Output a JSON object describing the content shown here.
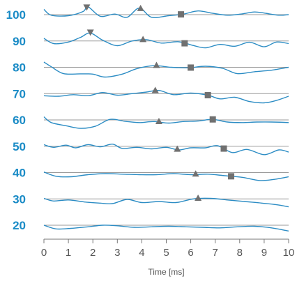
{
  "chart_data": {
    "type": "line",
    "xlabel": "Time [ms]",
    "xlim": [
      0,
      10
    ],
    "x_ticks": [
      0,
      1,
      2,
      3,
      4,
      5,
      6,
      7,
      8,
      9,
      10
    ],
    "y_ticks": [
      100,
      90,
      80,
      70,
      60,
      50,
      40,
      30,
      20
    ],
    "colors": {
      "trace": "#2b8cc4",
      "baseline": "#9a9a9a",
      "marker": "#707070",
      "ytick": "#1a8bc6"
    },
    "traces": [
      {
        "level": 100,
        "x": [
          0,
          0.3,
          1.0,
          1.6,
          1.8,
          2.3,
          2.9,
          3.4,
          3.9,
          4.4,
          5.1,
          5.7,
          6.3,
          6.9,
          7.5,
          8.1,
          8.6,
          9.0,
          9.6,
          10
        ],
        "y": [
          102,
          99.8,
          99.6,
          101.2,
          103,
          99.4,
          100.2,
          99.0,
          102.5,
          99.0,
          99.6,
          100.2,
          101.4,
          100.5,
          99.8,
          100.3,
          101.0,
          100.6,
          99.8,
          100.0
        ],
        "markers": [
          {
            "x": 1.75,
            "shape": "triangle-down"
          },
          {
            "x": 3.95,
            "shape": "triangle-up"
          },
          {
            "x": 5.6,
            "shape": "square"
          }
        ]
      },
      {
        "level": 90,
        "x": [
          0,
          0.4,
          1.0,
          1.5,
          1.9,
          2.4,
          3.0,
          3.6,
          4.2,
          4.8,
          5.5,
          6.1,
          6.6,
          7.2,
          7.8,
          8.4,
          9.0,
          9.5,
          10
        ],
        "y": [
          91,
          89.0,
          89.6,
          91.4,
          93,
          90.3,
          88.2,
          90.0,
          90.5,
          89.2,
          89.7,
          88.3,
          87.4,
          88.7,
          88.0,
          89.5,
          87.8,
          89.6,
          89.0
        ],
        "markers": [
          {
            "x": 1.9,
            "shape": "triangle-down"
          },
          {
            "x": 4.05,
            "shape": "triangle-up"
          },
          {
            "x": 5.75,
            "shape": "square"
          }
        ]
      },
      {
        "level": 80,
        "x": [
          0,
          0.3,
          0.8,
          1.5,
          2.0,
          2.5,
          3.2,
          3.8,
          4.5,
          5.2,
          5.9,
          6.6,
          7.3,
          7.9,
          8.6,
          9.3,
          10
        ],
        "y": [
          82,
          80.2,
          77.6,
          77.5,
          77.4,
          76.3,
          77.4,
          79.5,
          80.6,
          80.0,
          79.8,
          80.4,
          79.6,
          77.6,
          78.3,
          78.9,
          80.0
        ],
        "markers": [
          {
            "x": 4.6,
            "shape": "triangle-up"
          },
          {
            "x": 6.0,
            "shape": "square"
          }
        ]
      },
      {
        "level": 70,
        "x": [
          0,
          0.6,
          1.2,
          1.8,
          2.4,
          3.0,
          3.6,
          4.2,
          4.7,
          5.3,
          6.0,
          6.7,
          7.2,
          7.8,
          8.4,
          9.0,
          9.5,
          10
        ],
        "y": [
          69.2,
          69.0,
          69.6,
          69.2,
          70.4,
          69.4,
          70.0,
          70.6,
          71.2,
          69.6,
          70.2,
          69.4,
          68.0,
          68.6,
          67.0,
          66.5,
          67.4,
          69.0
        ],
        "markers": [
          {
            "x": 4.55,
            "shape": "triangle-up"
          },
          {
            "x": 6.7,
            "shape": "square"
          }
        ]
      },
      {
        "level": 60,
        "x": [
          0,
          0.3,
          0.9,
          1.5,
          2.1,
          2.7,
          3.3,
          3.9,
          4.5,
          5.1,
          5.7,
          6.3,
          6.9,
          7.5,
          8.1,
          8.7,
          9.3,
          10
        ],
        "y": [
          61.2,
          59.0,
          57.8,
          56.8,
          57.6,
          60.2,
          59.5,
          59.0,
          59.4,
          58.8,
          59.4,
          59.6,
          60.2,
          59.2,
          59.0,
          59.2,
          59.2,
          59.0
        ],
        "markers": [
          {
            "x": 4.7,
            "shape": "triangle-up"
          },
          {
            "x": 6.9,
            "shape": "square"
          }
        ]
      },
      {
        "level": 50,
        "x": [
          0,
          0.4,
          0.9,
          1.3,
          1.8,
          2.3,
          2.8,
          3.2,
          3.8,
          4.4,
          5.0,
          5.5,
          6.0,
          6.6,
          7.1,
          7.7,
          8.3,
          9.0,
          9.6,
          10
        ],
        "y": [
          50.6,
          49.6,
          50.4,
          49.4,
          50.6,
          49.8,
          50.8,
          49.2,
          49.6,
          49.0,
          49.6,
          48.6,
          49.4,
          49.4,
          50.2,
          47.6,
          48.8,
          46.8,
          48.6,
          47.8
        ],
        "markers": [
          {
            "x": 5.45,
            "shape": "triangle-up"
          },
          {
            "x": 7.35,
            "shape": "square"
          }
        ]
      },
      {
        "level": 40,
        "x": [
          0,
          0.5,
          1.1,
          1.8,
          2.5,
          3.2,
          3.9,
          4.6,
          5.3,
          6.0,
          6.7,
          7.4,
          8.1,
          8.8,
          9.4,
          10
        ],
        "y": [
          40.2,
          38.6,
          38.4,
          39.2,
          39.6,
          39.4,
          39.2,
          39.2,
          39.6,
          39.2,
          39.4,
          38.8,
          38.2,
          37.0,
          37.4,
          38.4
        ],
        "markers": [
          {
            "x": 6.2,
            "shape": "triangle-up"
          },
          {
            "x": 7.65,
            "shape": "square"
          }
        ]
      },
      {
        "level": 30,
        "x": [
          0,
          0.4,
          1.0,
          1.7,
          2.3,
          2.8,
          3.4,
          4.0,
          4.7,
          5.4,
          6.1,
          6.8,
          7.5,
          8.2,
          8.9,
          9.5,
          10
        ],
        "y": [
          30.2,
          29.2,
          29.6,
          28.8,
          28.4,
          28.2,
          29.8,
          28.6,
          29.0,
          28.6,
          30.0,
          30.2,
          29.6,
          29.0,
          28.4,
          27.8,
          27.0
        ],
        "markers": [
          {
            "x": 6.3,
            "shape": "triangle-up"
          }
        ]
      },
      {
        "level": 20,
        "x": [
          0,
          0.5,
          1.1,
          1.8,
          2.4,
          3.0,
          3.7,
          4.4,
          5.1,
          5.8,
          6.5,
          7.2,
          7.9,
          8.6,
          9.3,
          10
        ],
        "y": [
          20.0,
          18.6,
          18.8,
          19.4,
          20.0,
          19.8,
          19.2,
          19.4,
          19.6,
          19.4,
          19.2,
          19.0,
          19.4,
          19.6,
          19.0,
          17.8
        ],
        "markers": []
      }
    ]
  }
}
